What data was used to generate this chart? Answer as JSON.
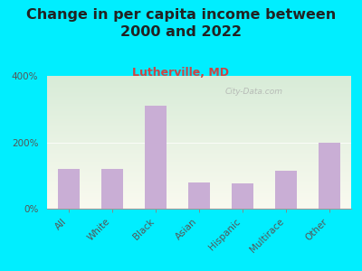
{
  "title": "Change in per capita income between\n2000 and 2022",
  "subtitle": "Lutherville, MD",
  "categories": [
    "All",
    "White",
    "Black",
    "Asian",
    "Hispanic",
    "Multirace",
    "Other"
  ],
  "values": [
    120,
    120,
    310,
    80,
    75,
    115,
    200
  ],
  "bar_color": "#c9aed5",
  "background_outer": "#00eeff",
  "title_color": "#222222",
  "subtitle_color": "#cc4444",
  "ylabel_ticks": [
    "0%",
    "200%",
    "400%"
  ],
  "ytick_vals": [
    0,
    200,
    400
  ],
  "ylim": [
    0,
    400
  ],
  "watermark": "City-Data.com",
  "title_fontsize": 11.5,
  "subtitle_fontsize": 9,
  "tick_fontsize": 7.5
}
